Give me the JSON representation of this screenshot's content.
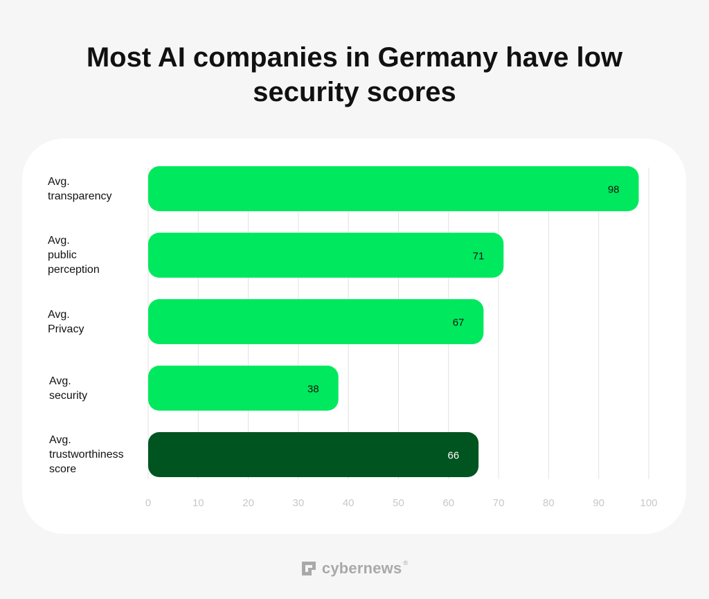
{
  "title_lines": [
    "Most AI companies in Germany have low",
    "security scores"
  ],
  "chart_data": {
    "type": "bar",
    "orientation": "horizontal",
    "title": "Most AI companies in Germany have low security scores",
    "categories": [
      [
        "Avg.",
        "transparency"
      ],
      [
        "Avg.",
        "public",
        "perception"
      ],
      [
        "Avg.",
        "Privacy"
      ],
      [
        "Avg.",
        "security"
      ],
      [
        "Avg.",
        "trustworthiness",
        "score"
      ]
    ],
    "values": [
      98,
      71,
      67,
      38,
      66
    ],
    "value_labels": [
      "98",
      "71",
      "67",
      "38",
      "66"
    ],
    "bar_colors": [
      "#00e95e",
      "#00e95e",
      "#00e95e",
      "#00e95e",
      "#005420"
    ],
    "value_label_colors": [
      "#111111",
      "#111111",
      "#111111",
      "#111111",
      "#ffffff"
    ],
    "xlim": [
      0,
      100
    ],
    "x_ticks": [
      "0",
      "10",
      "20",
      "30",
      "40",
      "50",
      "60",
      "70",
      "80",
      "90",
      "100"
    ],
    "grid": "vertical",
    "xlabel": "",
    "ylabel": ""
  },
  "brand": {
    "name": "cybernews",
    "registered_mark": "®",
    "icon": "cybernews-logo-icon"
  }
}
